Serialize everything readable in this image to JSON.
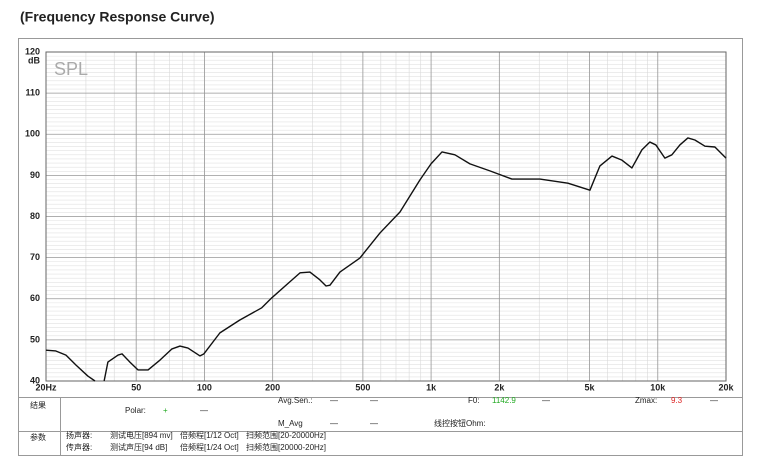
{
  "chart_data": {
    "type": "line",
    "title": "(Frequency Response Curve)",
    "ylabel": "dB",
    "annotation": "SPL",
    "log_x": true,
    "grid": true,
    "color": "#111111",
    "x": [
      20,
      22.1,
      24.5,
      27.1,
      30.6,
      32.9,
      null,
      36.1,
      37.5,
      41.6,
      43.3,
      46.9,
      50.9,
      56.4,
      63.7,
      71.9,
      78,
      84.6,
      95.6,
      99.5,
      117,
      143,
      179,
      198,
      238,
      264,
      292,
      323,
      344,
      358,
      396,
      485,
      595,
      729,
      893,
      999,
      1117,
      1274,
      1484,
      1817,
      2273,
      3020,
      4015,
      5020,
      5557,
      6280,
      6950,
      7690,
      8510,
      9230,
      9810,
      10750,
      11540,
      12520,
      13580,
      14580,
      16150,
      17870,
      20000
    ],
    "values": [
      47.5,
      47.3,
      46.3,
      43.9,
      41.2,
      40,
      null,
      40,
      44.6,
      46.3,
      46.6,
      44.6,
      42.7,
      42.7,
      45.1,
      47.8,
      48.5,
      48,
      46.1,
      46.6,
      51.7,
      54.8,
      57.8,
      60.2,
      64.1,
      66.3,
      66.5,
      64.6,
      63.1,
      63.3,
      66.5,
      69.9,
      76,
      81.1,
      88.9,
      92.8,
      95.7,
      95,
      92.8,
      91.1,
      89.1,
      89.1,
      88.1,
      86.4,
      92.3,
      94.7,
      93.7,
      91.8,
      96.2,
      98.1,
      97.4,
      94.2,
      95,
      97.4,
      99.1,
      98.6,
      97.1,
      96.9,
      94.2
    ],
    "xlim": [
      20,
      20000
    ],
    "xticks": [
      {
        "value": 20,
        "label": "20Hz"
      },
      50,
      100,
      200,
      500,
      {
        "value": 1000,
        "label": "1k"
      },
      {
        "value": 2000,
        "label": "2k"
      },
      {
        "value": 5000,
        "label": "5k"
      },
      {
        "value": 10000,
        "label": "10k"
      },
      {
        "value": 20000,
        "label": "20k"
      }
    ],
    "ylim": [
      40,
      120
    ],
    "yticks": [
      40,
      50,
      60,
      70,
      80,
      90,
      100,
      110,
      120
    ]
  },
  "info": {
    "result_label": "结果",
    "avg_sen": {
      "label": "Avg.Sen.:",
      "values": [
        "—",
        "—"
      ]
    },
    "f0": {
      "label": "F0:",
      "value": "1142.9",
      "dash": "—"
    },
    "zmax": {
      "label": "Zmax:",
      "value": "9.3",
      "dash": "—"
    },
    "polar": {
      "label": "Polar:",
      "value": "+",
      "dash": "—"
    },
    "m_avg": {
      "label": "M_Avg",
      "values": [
        "—",
        "—"
      ]
    },
    "ohm_label": "线控按钮Ohm:",
    "param_label": "参数",
    "speaker": [
      "扬声器:",
      "测试电压[894 mv]",
      "倍频程[1/12 Oct]",
      "扫频范围[20-20000Hz]"
    ],
    "mic": [
      "传声器:",
      "测试声压[94 dB]",
      "倍频程[1/24 Oct]",
      "扫频范围[20000-20Hz]"
    ]
  }
}
